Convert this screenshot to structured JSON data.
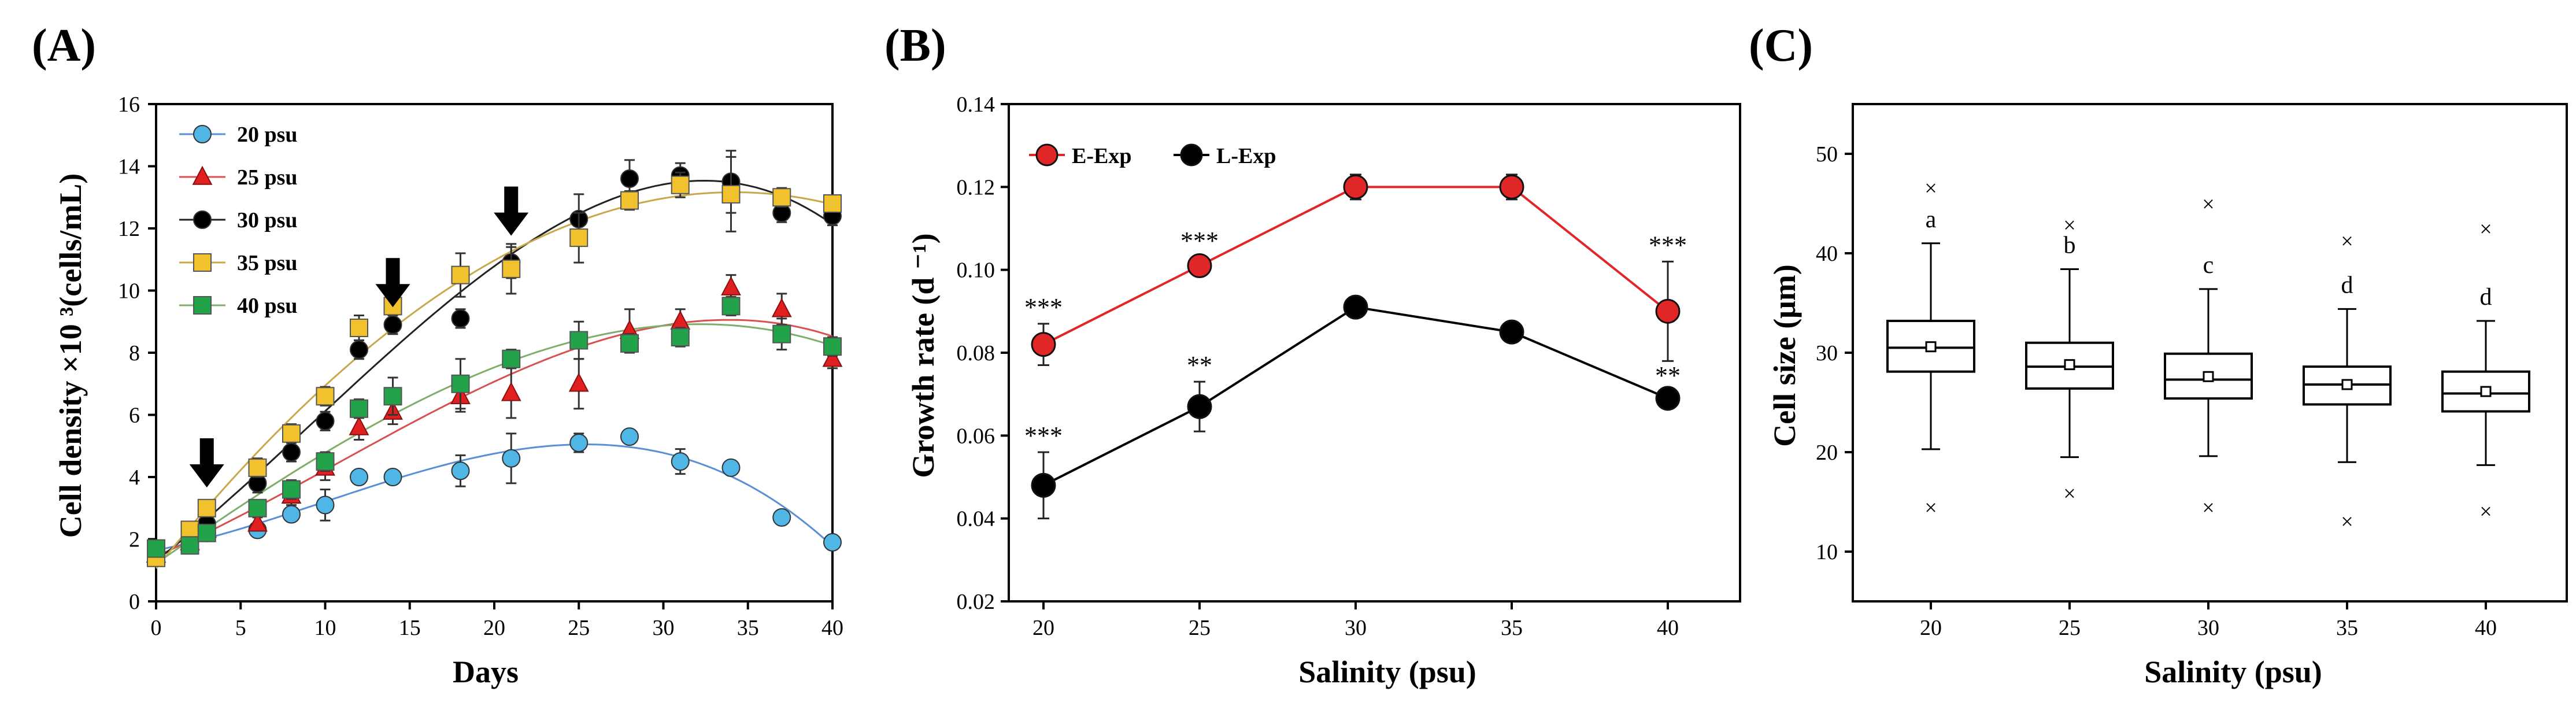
{
  "chart_data": [
    {
      "panel": "(A)",
      "type": "scatter",
      "xlabel": "Days",
      "ylabel": "Cell density  ×10 ³(cells/mL)",
      "xlim": [
        0,
        40
      ],
      "ylim": [
        0,
        16
      ],
      "xticks": [
        0,
        5,
        10,
        15,
        20,
        25,
        30,
        35,
        40
      ],
      "yticks": [
        0,
        2,
        4,
        6,
        8,
        10,
        12,
        14,
        16
      ],
      "arrows_at_days": [
        3,
        14,
        21
      ],
      "series": [
        {
          "name": "20 psu",
          "color": "#4fb6e6",
          "marker": "circle",
          "fit_color": "#5a8fd6",
          "x": [
            0,
            2,
            3,
            6,
            8,
            10,
            12,
            14,
            18,
            21,
            25,
            28,
            31,
            34,
            37,
            40
          ],
          "y": [
            1.5,
            2.0,
            2.2,
            2.3,
            2.8,
            3.1,
            4.0,
            4.0,
            4.2,
            4.6,
            5.1,
            5.3,
            4.5,
            4.3,
            2.7,
            1.9
          ],
          "err": [
            0.2,
            0.2,
            0.2,
            0.2,
            0.2,
            0.5,
            0.2,
            0.2,
            0.5,
            0.8,
            0.3,
            0.2,
            0.4,
            0.2,
            0.2,
            0.2
          ]
        },
        {
          "name": "25 psu",
          "color": "#e02020",
          "marker": "triangle",
          "fit_color": "#d85050",
          "x": [
            0,
            2,
            3,
            6,
            8,
            10,
            12,
            14,
            18,
            21,
            25,
            28,
            31,
            34,
            37,
            40
          ],
          "y": [
            1.5,
            1.9,
            2.3,
            2.5,
            3.4,
            4.3,
            5.6,
            6.1,
            6.6,
            6.7,
            7.0,
            8.7,
            9.0,
            10.1,
            9.4,
            7.8
          ],
          "err": [
            0.2,
            0.2,
            0.2,
            0.2,
            0.3,
            0.4,
            0.4,
            0.4,
            0.5,
            0.8,
            0.8,
            0.7,
            0.4,
            0.4,
            0.5,
            0.3
          ]
        },
        {
          "name": "30 psu",
          "color": "#000000",
          "marker": "circle",
          "fit_color": "#222222",
          "x": [
            0,
            2,
            3,
            6,
            8,
            10,
            12,
            14,
            18,
            21,
            25,
            28,
            31,
            34,
            37,
            40
          ],
          "y": [
            1.6,
            2.1,
            2.5,
            3.8,
            4.8,
            5.8,
            8.1,
            8.9,
            9.1,
            10.9,
            12.3,
            13.6,
            13.7,
            13.5,
            12.5,
            12.4
          ],
          "err": [
            0.2,
            0.2,
            0.2,
            0.3,
            0.3,
            0.3,
            0.3,
            0.3,
            0.3,
            0.5,
            0.8,
            0.6,
            0.4,
            1.0,
            0.3,
            0.3
          ]
        },
        {
          "name": "35 psu",
          "color": "#f2c12e",
          "marker": "square",
          "fit_color": "#c8a84a",
          "x": [
            0,
            2,
            3,
            6,
            8,
            10,
            12,
            14,
            18,
            21,
            25,
            28,
            31,
            34,
            37,
            40
          ],
          "y": [
            1.4,
            2.3,
            3.0,
            4.3,
            5.4,
            6.6,
            8.8,
            9.5,
            10.5,
            10.7,
            11.7,
            12.9,
            13.4,
            13.1,
            13.0,
            12.8
          ],
          "err": [
            0.2,
            0.2,
            0.2,
            0.3,
            0.3,
            0.3,
            0.4,
            0.3,
            0.7,
            0.8,
            0.8,
            0.3,
            0.4,
            1.2,
            0.3,
            0.2
          ]
        },
        {
          "name": "40 psu",
          "color": "#22a34a",
          "marker": "square",
          "fit_color": "#7fae6a",
          "x": [
            0,
            2,
            3,
            6,
            8,
            10,
            12,
            14,
            18,
            21,
            25,
            28,
            31,
            34,
            37,
            40
          ],
          "y": [
            1.7,
            1.8,
            2.2,
            3.0,
            3.6,
            4.5,
            6.2,
            6.6,
            7.0,
            7.8,
            8.4,
            8.3,
            8.5,
            9.5,
            8.6,
            8.2
          ],
          "err": [
            0.2,
            0.2,
            0.2,
            0.2,
            0.3,
            0.3,
            0.3,
            0.6,
            0.8,
            0.3,
            0.6,
            0.3,
            0.3,
            0.3,
            0.5,
            0.3
          ]
        }
      ]
    },
    {
      "panel": "(B)",
      "type": "line",
      "xlabel": "Salinity (psu)",
      "ylabel": "Growth  rate (d ⁻¹)",
      "categories": [
        "20",
        "25",
        "30",
        "35",
        "40"
      ],
      "ylim": [
        0.02,
        0.14
      ],
      "yticks": [
        "0.02",
        "0.04",
        "0.06",
        "0.08",
        "0.10",
        "0.12",
        "0.14"
      ],
      "series": [
        {
          "name": "E-Exp",
          "color": "#e02626",
          "values": [
            0.082,
            0.101,
            0.12,
            0.12,
            0.09
          ],
          "err": [
            0.005,
            0.002,
            0.003,
            0.003,
            0.012
          ],
          "labels": [
            "***",
            "***",
            "",
            "",
            "***"
          ]
        },
        {
          "name": "L-Exp",
          "color": "#000000",
          "values": [
            0.048,
            0.067,
            0.091,
            0.085,
            0.069
          ],
          "err": [
            0.008,
            0.006,
            0.0015,
            0.0015,
            0.0015
          ],
          "labels": [
            "***",
            "**",
            "",
            "",
            "**"
          ]
        }
      ]
    },
    {
      "panel": "(C)",
      "type": "box",
      "xlabel": "Salinity (psu)",
      "ylabel": "Cell size (μm)",
      "categories": [
        "20",
        "25",
        "30",
        "35",
        "40"
      ],
      "ylim": [
        5,
        55
      ],
      "yticks": [
        10,
        20,
        30,
        40,
        50
      ],
      "boxes": [
        {
          "q1": 28.1,
          "median": 30.5,
          "q3": 33.2,
          "mean": 30.6,
          "whisker_low": 20.3,
          "whisker_high": 41.0,
          "max": 46.5,
          "min": 14.4,
          "letter": "a"
        },
        {
          "q1": 26.4,
          "median": 28.6,
          "q3": 31.0,
          "mean": 28.8,
          "whisker_low": 19.5,
          "whisker_high": 38.4,
          "max": 42.8,
          "min": 15.8,
          "letter": "b"
        },
        {
          "q1": 25.4,
          "median": 27.3,
          "q3": 29.9,
          "mean": 27.6,
          "whisker_low": 19.6,
          "whisker_high": 36.4,
          "max": 44.9,
          "min": 14.4,
          "letter": "c"
        },
        {
          "q1": 24.8,
          "median": 26.8,
          "q3": 28.6,
          "mean": 26.8,
          "whisker_low": 19.0,
          "whisker_high": 34.4,
          "max": 41.2,
          "min": 13.0,
          "letter": "d"
        },
        {
          "q1": 24.1,
          "median": 25.9,
          "q3": 28.1,
          "mean": 26.1,
          "whisker_low": 18.7,
          "whisker_high": 33.2,
          "max": 42.4,
          "min": 14.0,
          "letter": "d"
        }
      ]
    }
  ]
}
